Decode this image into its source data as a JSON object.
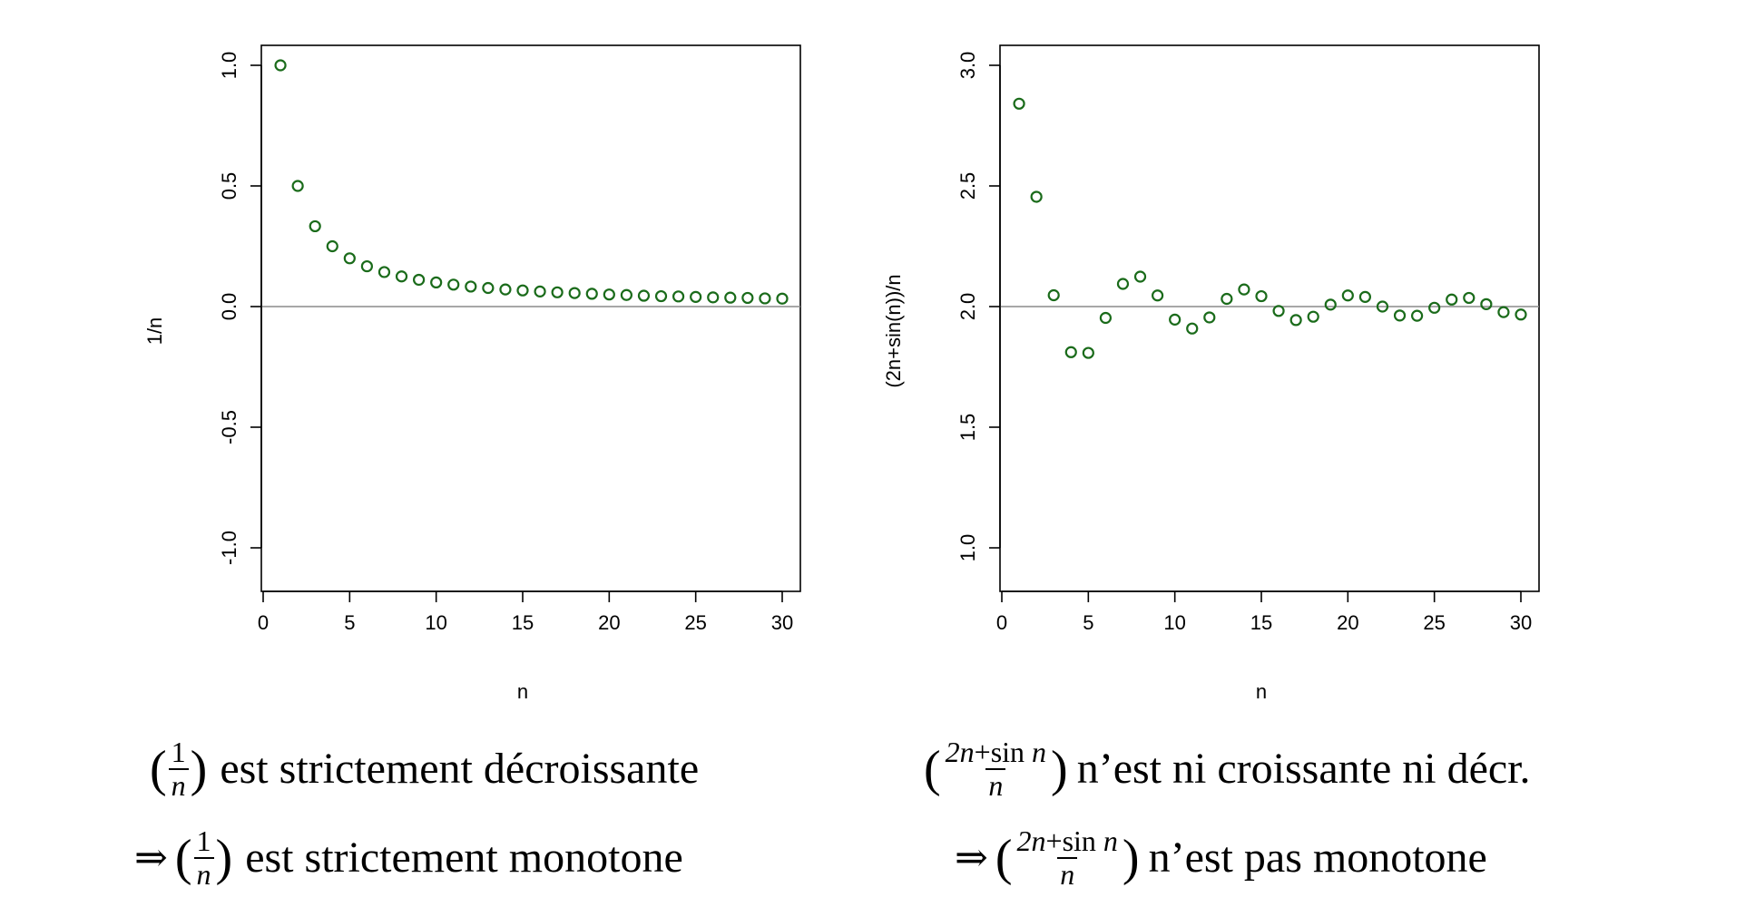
{
  "chart_data": [
    {
      "type": "scatter",
      "xlabel": "n",
      "ylabel": "1/n",
      "xlim": [
        0,
        30
      ],
      "ylim": [
        -1.0,
        1.0
      ],
      "xticks": [
        "0",
        "5",
        "10",
        "15",
        "20",
        "25",
        "30"
      ],
      "yticks": [
        "-1.0",
        "-0.5",
        "0.0",
        "0.5",
        "1.0"
      ],
      "reference_line_y": 0,
      "marker": "open-circle",
      "color": "#1a6b1a",
      "x": [
        1,
        2,
        3,
        4,
        5,
        6,
        7,
        8,
        9,
        10,
        11,
        12,
        13,
        14,
        15,
        16,
        17,
        18,
        19,
        20,
        21,
        22,
        23,
        24,
        25,
        26,
        27,
        28,
        29,
        30
      ],
      "y": [
        1.0,
        0.5,
        0.333,
        0.25,
        0.2,
        0.167,
        0.143,
        0.125,
        0.111,
        0.1,
        0.091,
        0.083,
        0.077,
        0.071,
        0.067,
        0.0625,
        0.059,
        0.056,
        0.053,
        0.05,
        0.048,
        0.045,
        0.043,
        0.042,
        0.04,
        0.038,
        0.037,
        0.036,
        0.034,
        0.033
      ]
    },
    {
      "type": "scatter",
      "xlabel": "n",
      "ylabel": "(2n+sin(n))/n",
      "xlim": [
        0,
        30
      ],
      "ylim": [
        1.0,
        3.0
      ],
      "xticks": [
        "0",
        "5",
        "10",
        "15",
        "20",
        "25",
        "30"
      ],
      "yticks": [
        "1.0",
        "1.5",
        "2.0",
        "2.5",
        "3.0"
      ],
      "reference_line_y": 2,
      "marker": "open-circle",
      "color": "#1a6b1a",
      "x": [
        1,
        2,
        3,
        4,
        5,
        6,
        7,
        8,
        9,
        10,
        11,
        12,
        13,
        14,
        15,
        16,
        17,
        18,
        19,
        20,
        21,
        22,
        23,
        24,
        25,
        26,
        27,
        28,
        29,
        30
      ],
      "y": [
        2.841,
        2.455,
        2.047,
        1.811,
        1.808,
        1.953,
        2.094,
        2.124,
        2.046,
        1.946,
        1.909,
        1.955,
        2.032,
        2.071,
        2.043,
        1.982,
        1.944,
        1.958,
        2.008,
        2.046,
        2.04,
        2.0,
        1.963,
        1.962,
        1.995,
        2.029,
        2.036,
        2.01,
        1.977,
        1.967
      ]
    }
  ],
  "captions": {
    "left_line1_text": "est strictement décroissante",
    "left_line2_text": "est strictement monotone",
    "right_line1_text": "n’est ni croissante ni décr.",
    "right_line2_text": "n’est pas monotone",
    "arrow": "⇒",
    "frac1_num": "1",
    "frac_den": "n",
    "frac2_num_a": "2n",
    "frac2_num_b": "+sin",
    "frac2_num_c": " n"
  }
}
